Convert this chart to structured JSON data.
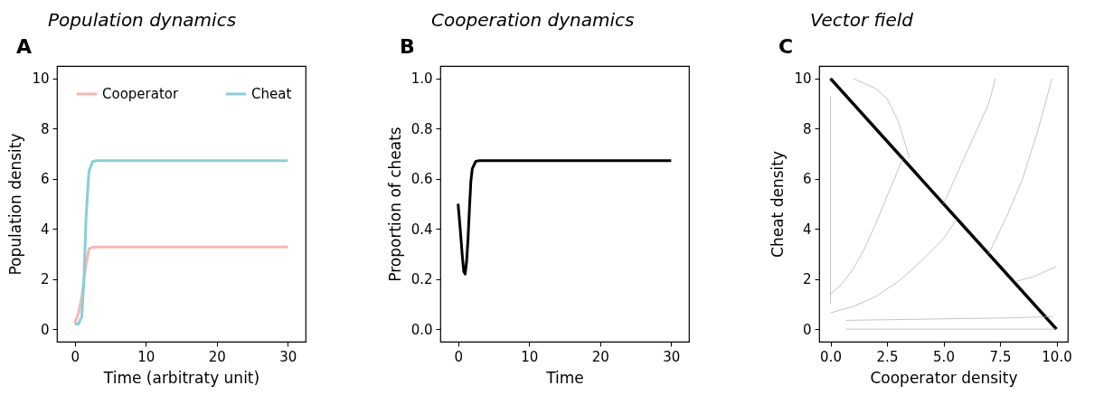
{
  "chart_data": [
    {
      "type": "line",
      "title": "Population dynamics",
      "annotations": [
        "A"
      ],
      "xlabel": "Time (arbitraty unit)",
      "ylabel": "Population density",
      "xlim": [
        -2.5,
        32.5
      ],
      "ylim": [
        -0.5,
        10.5
      ],
      "xticks": [
        0,
        10,
        20,
        30
      ],
      "yticks": [
        0,
        2,
        4,
        6,
        8,
        10
      ],
      "grid": false,
      "legend": "top",
      "marker": "none",
      "line_style": "solid",
      "series": [
        {
          "name": "Cooperator",
          "color": "#f7b6b2",
          "x": [
            0,
            0.5,
            1,
            1.5,
            2,
            2.5,
            3,
            30
          ],
          "values": [
            0.25,
            0.6,
            1.3,
            2.4,
            3.2,
            3.27,
            3.28,
            3.28
          ]
        },
        {
          "name": "Cheat",
          "color": "#86d0d5",
          "x": [
            0,
            0.5,
            1,
            1.3,
            1.6,
            2,
            2.5,
            3,
            30
          ],
          "values": [
            0.2,
            0.2,
            0.5,
            2,
            4.5,
            6.3,
            6.68,
            6.72,
            6.72
          ]
        }
      ]
    },
    {
      "type": "line",
      "title": "Cooperation dynamics",
      "annotations": [
        "B"
      ],
      "xlabel": "Time",
      "ylabel": "Proportion of cheats",
      "xlim": [
        -2.5,
        32.5
      ],
      "ylim": [
        -0.05,
        1.05
      ],
      "xticks": [
        0,
        10,
        20,
        30
      ],
      "yticks": [
        {
          "value": 0,
          "label": "0.0"
        },
        0.2,
        0.4,
        0.6,
        0.8,
        {
          "value": 1,
          "label": "1.0"
        }
      ],
      "grid": false,
      "marker": "none",
      "line_style": "solid",
      "series": [
        {
          "color": "#000000",
          "x": [
            0,
            0.3,
            0.6,
            0.8,
            1,
            1.2,
            1.4,
            1.6,
            1.8,
            2,
            2.5,
            3,
            30
          ],
          "values": [
            0.5,
            0.4,
            0.29,
            0.23,
            0.22,
            0.27,
            0.36,
            0.48,
            0.59,
            0.64,
            0.67,
            0.672,
            0.672
          ]
        }
      ]
    },
    {
      "type": "line",
      "title": "Vector field",
      "annotations": [
        "C"
      ],
      "xlabel": "Cooperator density",
      "ylabel": "Cheat density",
      "xlim": [
        -0.5,
        10.5
      ],
      "ylim": [
        -0.5,
        10.5
      ],
      "xticks": [
        {
          "value": 0,
          "label": "0.0"
        },
        2.5,
        {
          "value": 5,
          "label": "5.0"
        },
        7.5,
        {
          "value": 10,
          "label": "10.0"
        }
      ],
      "yticks": [
        0,
        2,
        4,
        6,
        8,
        10
      ],
      "grid": false,
      "marker": "none",
      "line_style": "solid",
      "series": [
        {
          "color": "#000000",
          "x": [
            0,
            10
          ],
          "values": [
            10,
            0
          ]
        },
        {
          "color": "#aaaaaa",
          "x": [
            0.7,
            10
          ],
          "values": [
            0,
            0
          ]
        },
        {
          "color": "#aaaaaa",
          "x": [
            0.7,
            8,
            9.8
          ],
          "values": [
            0.35,
            0.45,
            0.5
          ]
        },
        {
          "color": "#aaaaaa",
          "x": [
            0,
            1,
            2,
            3,
            4,
            5,
            5.6
          ],
          "values": [
            0.65,
            0.9,
            1.3,
            1.9,
            2.7,
            3.6,
            4.4
          ]
        },
        {
          "color": "#aaaaaa",
          "x": [
            0,
            0.5,
            1,
            1.5,
            2,
            2.5,
            3.2
          ],
          "values": [
            1.4,
            1.8,
            2.4,
            3.2,
            4.2,
            5.3,
            6.8
          ]
        },
        {
          "color": "#aaaaaa",
          "x": [
            0,
            0,
            0
          ],
          "values": [
            1,
            4.7,
            9.3
          ]
        },
        {
          "color": "#aaaaaa",
          "x": [
            5,
            5.5,
            6,
            6.5,
            7,
            7.3
          ],
          "values": [
            5,
            6,
            7,
            8,
            9,
            10
          ]
        },
        {
          "color": "#aaaaaa",
          "x": [
            7,
            7.8,
            8.5,
            9.2,
            9.8
          ],
          "values": [
            3,
            4.5,
            6,
            8,
            10
          ]
        },
        {
          "color": "#aaaaaa",
          "x": [
            1,
            2,
            2.5,
            3,
            3.5
          ],
          "values": [
            10,
            9.6,
            9.2,
            8.3,
            6.8
          ]
        },
        {
          "color": "#aaaaaa",
          "x": [
            10,
            9,
            8.2
          ],
          "values": [
            2.5,
            2.1,
            1.9
          ]
        }
      ]
    }
  ]
}
